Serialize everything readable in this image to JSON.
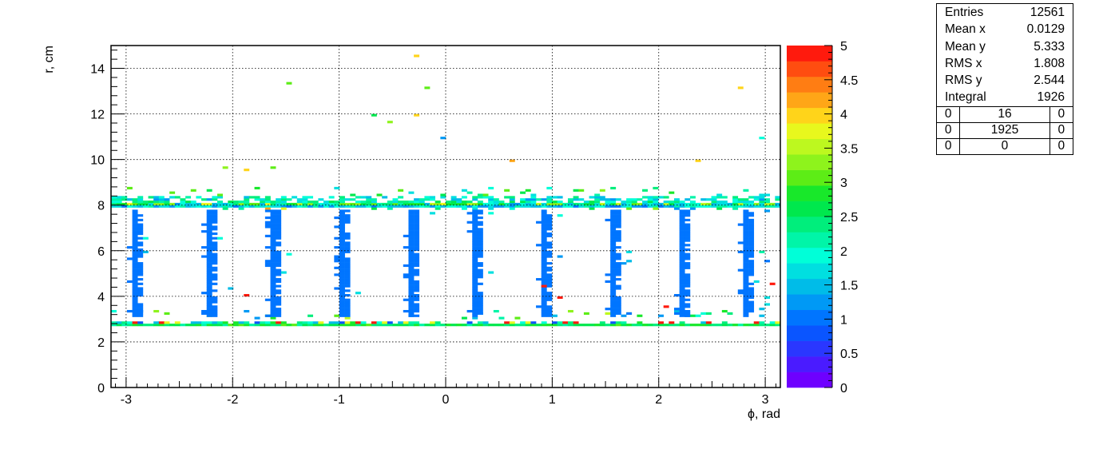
{
  "chart_data": {
    "type": "heatmap",
    "xlabel": "ϕ, rad",
    "ylabel": "r, cm",
    "xlim": [
      -3.1416,
      3.1416
    ],
    "ylim": [
      0,
      15
    ],
    "x_ticks": [
      "-3",
      "-2",
      "-1",
      "0",
      "1",
      "2",
      "3"
    ],
    "y_ticks": [
      "0",
      "2",
      "4",
      "6",
      "8",
      "10",
      "12",
      "14"
    ],
    "z_ticks": [
      "0",
      "0.5",
      "1",
      "1.5",
      "2",
      "2.5",
      "3",
      "3.5",
      "4",
      "4.5",
      "5"
    ],
    "zlim": [
      0,
      5
    ],
    "grid": true,
    "palette": [
      "#6e00ff",
      "#4a1bff",
      "#2a37ff",
      "#0a55ff",
      "#0075ff",
      "#0099f5",
      "#00bce8",
      "#00dfe0",
      "#00ffd8",
      "#00f5a8",
      "#00ee7c",
      "#00e84d",
      "#18e82a",
      "#5ded16",
      "#8ef31c",
      "#bdf81f",
      "#e8f81d",
      "#ffd41a",
      "#ffa617",
      "#ff7d13",
      "#ff4d10",
      "#ff1a0d"
    ],
    "ring_structure": {
      "lower_ring_r": 2.75,
      "upper_ring_r": 8.0,
      "spokes_phi": [
        -2.9,
        -2.2,
        -1.6,
        -0.99,
        -0.32,
        0.28,
        0.93,
        1.58,
        2.2,
        2.82
      ]
    },
    "isolated_points": [
      {
        "x": -0.28,
        "y": 14.5,
        "z": 4.0
      },
      {
        "x": -1.45,
        "y": 13.3,
        "z": 3.1
      },
      {
        "x": -0.18,
        "y": 13.1,
        "z": 3.0
      },
      {
        "x": 2.75,
        "y": 13.1,
        "z": 4.0
      },
      {
        "x": -0.65,
        "y": 11.9,
        "z": 2.7
      },
      {
        "x": -0.5,
        "y": 11.7,
        "z": 3.2
      },
      {
        "x": -0.28,
        "y": 11.9,
        "z": 4.0
      },
      {
        "x": -0.02,
        "y": 10.9,
        "z": 1.3
      },
      {
        "x": 2.98,
        "y": 10.9,
        "z": 2.0
      },
      {
        "x": 0.6,
        "y": 9.9,
        "z": 4.1
      },
      {
        "x": 2.38,
        "y": 9.9,
        "z": 4.0
      },
      {
        "x": -1.87,
        "y": 9.5,
        "z": 4.0
      },
      {
        "x": -2.05,
        "y": 9.7,
        "z": 3.3
      },
      {
        "x": -1.6,
        "y": 9.7,
        "z": 3.0
      },
      {
        "x": 0.93,
        "y": 4.4,
        "z": 5.0
      },
      {
        "x": 3.08,
        "y": 4.5,
        "z": 5.0
      },
      {
        "x": -1.85,
        "y": 4.1,
        "z": 5.0
      },
      {
        "x": 1.05,
        "y": 3.9,
        "z": 5.0
      },
      {
        "x": 2.07,
        "y": 3.5,
        "z": 4.9
      }
    ],
    "stats": {
      "entries_label": "Entries",
      "entries": "12561",
      "mean_x_label": "Mean x",
      "mean_x": "0.0129",
      "mean_y_label": "Mean y",
      "mean_y": "5.333",
      "rms_x_label": "RMS x",
      "rms_x": "1.808",
      "rms_y_label": "RMS y",
      "rms_y": "2.544",
      "integral_label": "Integral",
      "integral": "1926",
      "overflow_grid": [
        [
          "0",
          "16",
          "0"
        ],
        [
          "0",
          "1925",
          "0"
        ],
        [
          "0",
          "0",
          "0"
        ]
      ]
    }
  }
}
